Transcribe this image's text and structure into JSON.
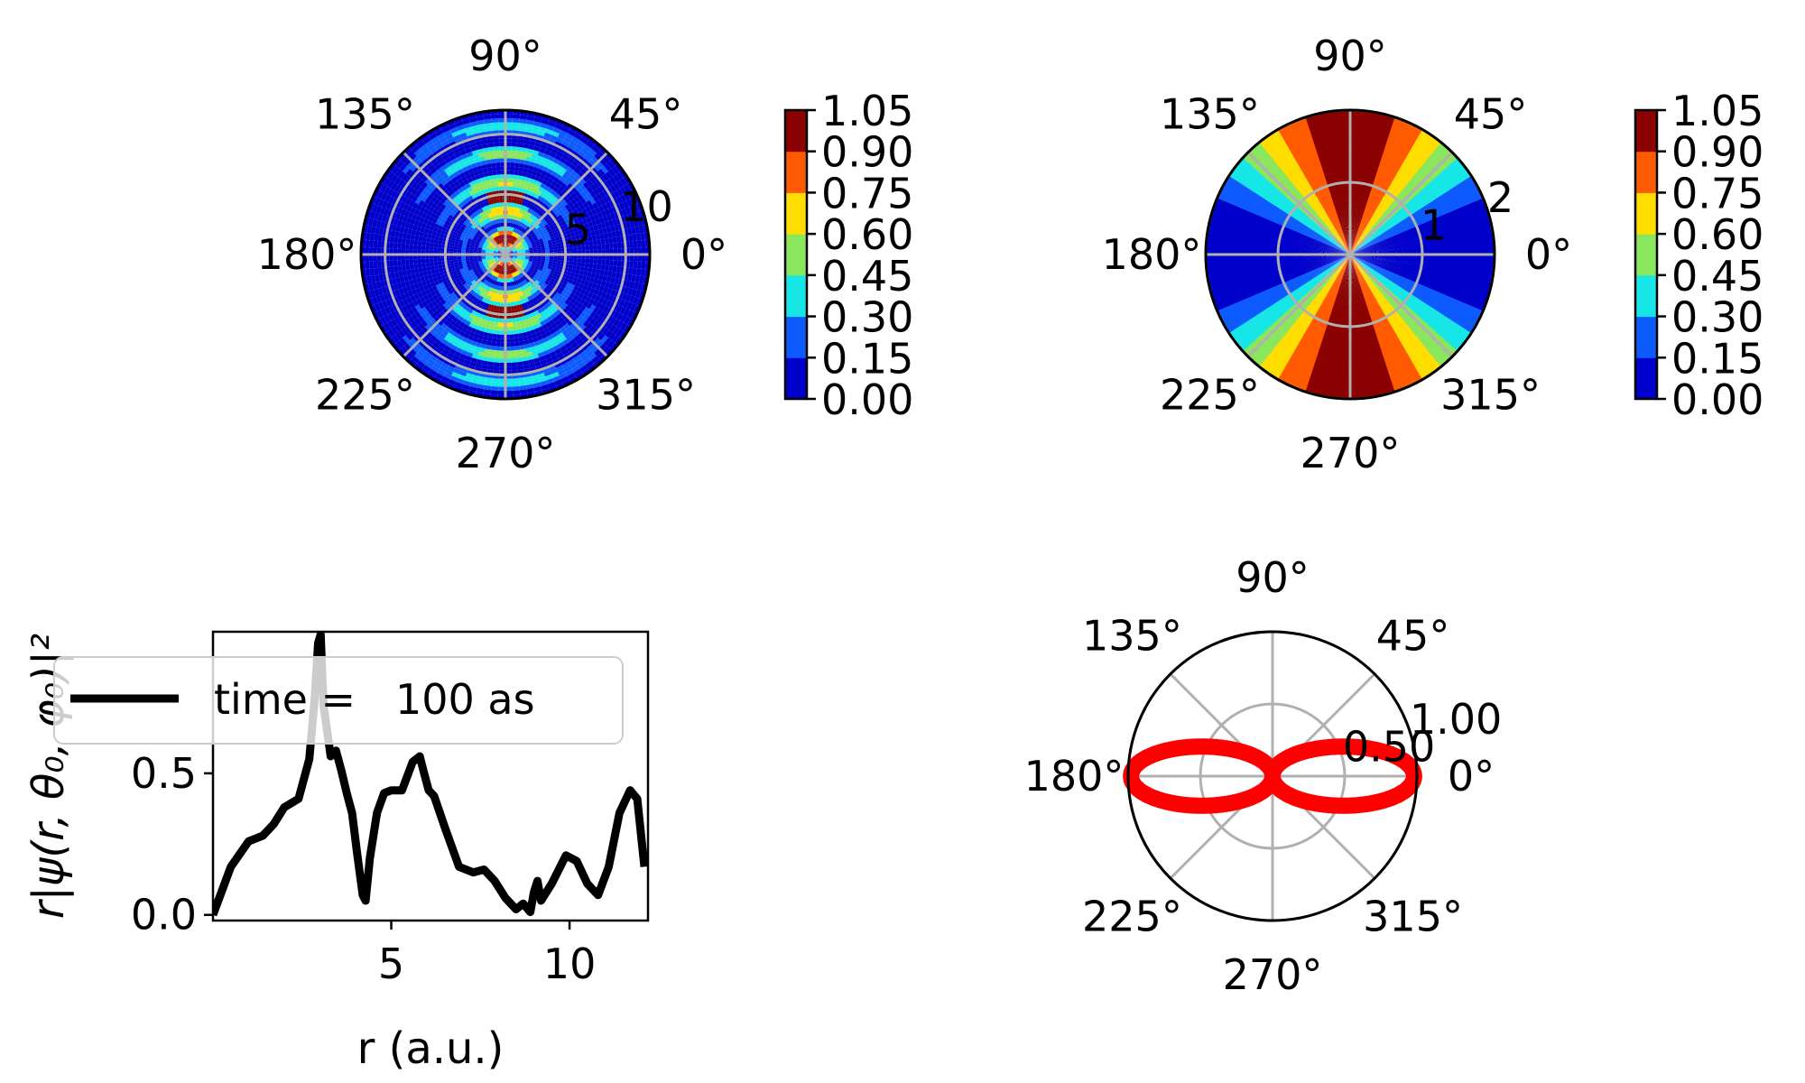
{
  "colormap": {
    "colors": [
      "#0000cc",
      "#0d5bff",
      "#17e6e6",
      "#8ae65c",
      "#ffdd00",
      "#ff5a00",
      "#8b0000"
    ],
    "outline_color": "#000000",
    "grid_color": "#b0b0b0",
    "curve_color": "#ff0000",
    "line_color": "#000000"
  },
  "chart_data": [
    {
      "id": "polar-density-xz",
      "type": "heatmap",
      "projection": "polar",
      "title": "",
      "angle_tick_labels": [
        "0°",
        "45°",
        "90°",
        "135°",
        "180°",
        "225°",
        "270°",
        "315°"
      ],
      "radial_ticks": [
        5,
        10
      ],
      "radial_tick_labels": [
        "5",
        "10"
      ],
      "rmax": 12,
      "value_range": [
        0,
        1.05
      ],
      "pattern": "concentric rings with angular nodes; maxima near 90° and 270° at r≈5",
      "colorbar": {
        "ticks": [
          0.0,
          0.15,
          0.3,
          0.45,
          0.6,
          0.75,
          0.9,
          1.05
        ],
        "tick_labels": [
          "0.00",
          "0.15",
          "0.30",
          "0.45",
          "0.60",
          "0.75",
          "0.90",
          "1.05"
        ]
      }
    },
    {
      "id": "polar-angular-sectors",
      "type": "heatmap",
      "projection": "polar",
      "title": "",
      "angle_tick_labels": [
        "0°",
        "45°",
        "90°",
        "135°",
        "180°",
        "225°",
        "270°",
        "315°"
      ],
      "radial_ticks": [
        1,
        2
      ],
      "radial_tick_labels": [
        "1",
        "2"
      ],
      "rmax": 2,
      "value_range": [
        0,
        1.05
      ],
      "pattern": "value depends on angle only: sin² θ, high at 90°/270°, low at 0°/180°",
      "colorbar": {
        "ticks": [
          0.0,
          0.15,
          0.3,
          0.45,
          0.6,
          0.75,
          0.9,
          1.05
        ],
        "tick_labels": [
          "0.00",
          "0.15",
          "0.30",
          "0.45",
          "0.60",
          "0.75",
          "0.90",
          "1.05"
        ]
      }
    },
    {
      "id": "radial-profile",
      "type": "line",
      "title": "",
      "xlabel": "r (a.u.)",
      "ylabel": "r|ψ(r, θ₀, φ₀)|²",
      "xlim": [
        0,
        12.2
      ],
      "ylim": [
        -0.02,
        1.0
      ],
      "xticks": [
        5,
        10
      ],
      "xtick_labels": [
        "5",
        "10"
      ],
      "yticks": [
        0.0,
        0.5
      ],
      "ytick_labels": [
        "0.0",
        "0.5"
      ],
      "legend": {
        "label": "time =   100 as",
        "location": "upper-center"
      },
      "series": [
        {
          "name": "time =   100 as",
          "x": [
            0,
            0.5,
            1.0,
            1.4,
            1.7,
            2.0,
            2.4,
            2.7,
            2.85,
            2.95,
            3.02,
            3.1,
            3.3,
            3.45,
            3.6,
            3.75,
            3.9,
            4.05,
            4.2,
            4.28,
            4.4,
            4.6,
            4.8,
            5.0,
            5.3,
            5.6,
            5.8,
            5.9,
            6.05,
            6.2,
            6.5,
            6.9,
            7.3,
            7.6,
            7.9,
            8.2,
            8.5,
            8.7,
            8.9,
            9.0,
            9.1,
            9.2,
            9.5,
            9.9,
            10.2,
            10.5,
            10.8,
            11.1,
            11.4,
            11.7,
            11.9,
            12.1
          ],
          "y": [
            0.0,
            0.17,
            0.26,
            0.28,
            0.32,
            0.38,
            0.41,
            0.55,
            0.76,
            0.96,
            0.99,
            0.74,
            0.56,
            0.58,
            0.51,
            0.43,
            0.36,
            0.21,
            0.07,
            0.05,
            0.2,
            0.36,
            0.43,
            0.44,
            0.44,
            0.54,
            0.56,
            0.51,
            0.44,
            0.42,
            0.31,
            0.17,
            0.15,
            0.16,
            0.12,
            0.06,
            0.02,
            0.04,
            0.01,
            0.08,
            0.12,
            0.05,
            0.11,
            0.21,
            0.19,
            0.11,
            0.07,
            0.17,
            0.36,
            0.44,
            0.41,
            0.17
          ]
        }
      ]
    },
    {
      "id": "polar-angular-curve",
      "type": "line",
      "projection": "polar",
      "title": "",
      "angle_tick_labels": [
        "0°",
        "45°",
        "90°",
        "135°",
        "180°",
        "225°",
        "270°",
        "315°"
      ],
      "radial_ticks": [
        0.5,
        1.0
      ],
      "radial_tick_labels": [
        "0.50",
        "1.00"
      ],
      "rmax": 1.0,
      "series": [
        {
          "shape": "r = |cos θ| (p-orbital lobes along 0°–180°)",
          "rmax_value": 1.0
        }
      ]
    }
  ]
}
